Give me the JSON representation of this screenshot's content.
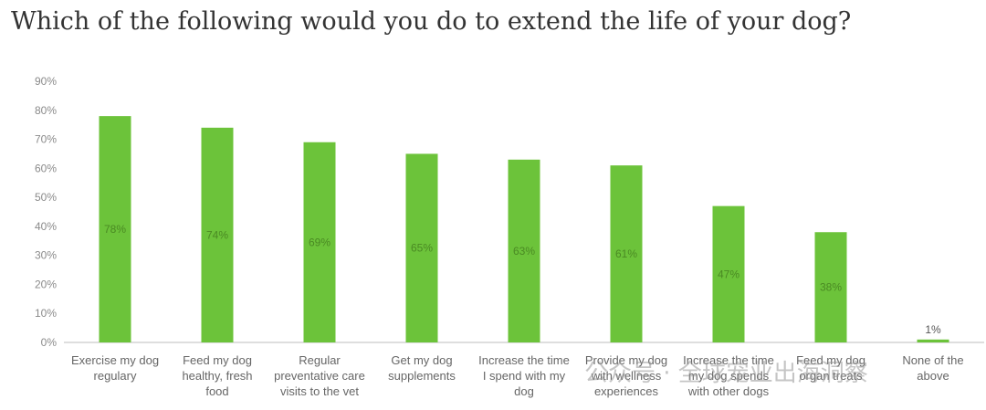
{
  "page": {
    "question": "Which of the following would you do to extend the life of your dog?",
    "watermark": "公众号 · 全球宠业出海洞察"
  },
  "colors": {
    "bar": "#6cc33a",
    "bar_label": "#4a8a23",
    "axis_text": "#8a8a8a",
    "category_text": "#666666",
    "baseline": "#bdbdbd"
  },
  "chart_data": {
    "type": "bar",
    "title": "",
    "xlabel": "",
    "ylabel": "",
    "ylim": [
      0,
      90
    ],
    "yticks": [
      0,
      10,
      20,
      30,
      40,
      50,
      60,
      70,
      80,
      90
    ],
    "grid": false,
    "categories": [
      [
        "Exercise my dog",
        "regulary"
      ],
      [
        "Feed my dog",
        "healthy, fresh",
        "food"
      ],
      [
        "Regular",
        "preventative care",
        "visits to the vet"
      ],
      [
        "Get my dog",
        "supplements"
      ],
      [
        "Increase the time",
        "I spend with my",
        "dog"
      ],
      [
        "Provide my dog",
        "with wellness",
        "experiences"
      ],
      [
        "Increase the time",
        "my dog spends",
        "with other dogs"
      ],
      [
        "Feed my dog",
        "organ treats"
      ],
      [
        "None of the",
        "above"
      ]
    ],
    "values": [
      78,
      74,
      69,
      65,
      63,
      61,
      47,
      38,
      1
    ],
    "value_labels": [
      "78%",
      "74%",
      "69%",
      "65%",
      "63%",
      "61%",
      "47%",
      "38%",
      "1%"
    ]
  }
}
